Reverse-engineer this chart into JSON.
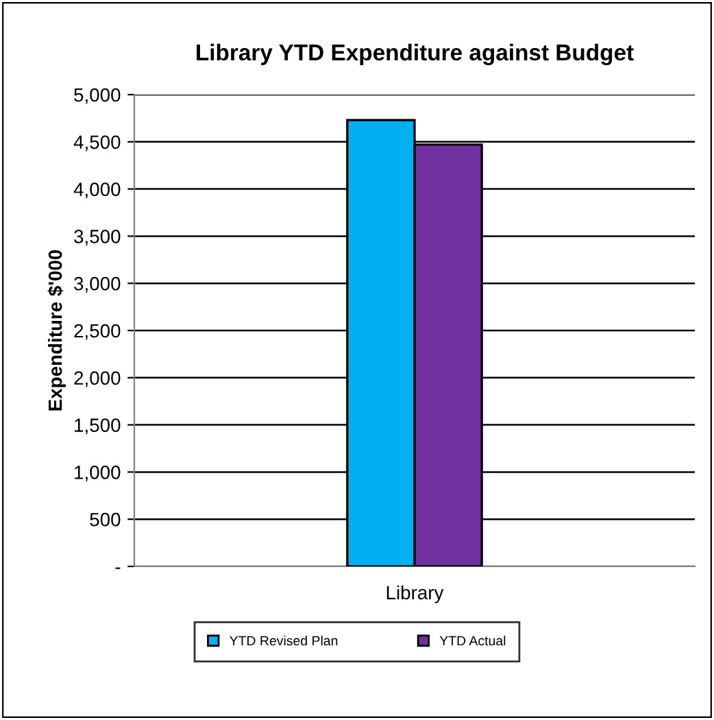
{
  "chart_data": {
    "type": "bar",
    "title": "Library YTD Expenditure against Budget",
    "ylabel": "Expenditure $'000",
    "categories": [
      "Library"
    ],
    "series": [
      {
        "name": "YTD Revised Plan",
        "color": "#00b0f0",
        "values": [
          4730
        ]
      },
      {
        "name": "YTD Actual",
        "color": "#7030a0",
        "values": [
          4470
        ]
      }
    ],
    "ylim": [
      0,
      5000
    ],
    "yticks": [
      {
        "value": 0,
        "label": "-"
      },
      {
        "value": 500,
        "label": "500"
      },
      {
        "value": 1000,
        "label": "1,000"
      },
      {
        "value": 1500,
        "label": "1,500"
      },
      {
        "value": 2000,
        "label": "2,000"
      },
      {
        "value": 2500,
        "label": "2,500"
      },
      {
        "value": 3000,
        "label": "3,000"
      },
      {
        "value": 3500,
        "label": "3,500"
      },
      {
        "value": 4000,
        "label": "4,000"
      },
      {
        "value": 4500,
        "label": "4,500"
      },
      {
        "value": 5000,
        "label": "5,000"
      }
    ],
    "grid": "y",
    "legend": "bottom"
  }
}
